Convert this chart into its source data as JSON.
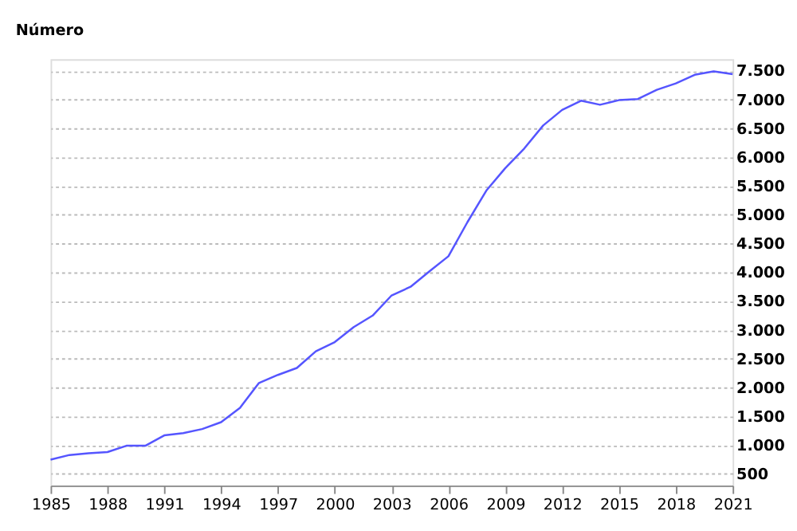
{
  "chart_data": {
    "type": "line",
    "ylabel": "Número",
    "x": [
      1985,
      1986,
      1987,
      1988,
      1989,
      1990,
      1991,
      1992,
      1993,
      1994,
      1995,
      1996,
      1997,
      1998,
      1999,
      2000,
      2001,
      2002,
      2003,
      2004,
      2005,
      2006,
      2007,
      2008,
      2009,
      2010,
      2011,
      2012,
      2013,
      2014,
      2015,
      2016,
      2017,
      2018,
      2019,
      2020,
      2021
    ],
    "series": [
      {
        "color": "#5555ff",
        "values": [
          750,
          830,
          860,
          880,
          990,
          990,
          1170,
          1210,
          1280,
          1400,
          1650,
          2080,
          2220,
          2340,
          2630,
          2790,
          3050,
          3250,
          3600,
          3750,
          4020,
          4280,
          4870,
          5420,
          5810,
          6150,
          6550,
          6820,
          6980,
          6910,
          6990,
          7010,
          7170,
          7280,
          7430,
          7490,
          7440
        ]
      }
    ],
    "xlim": [
      1985,
      2021
    ],
    "xticks": [
      1985,
      1988,
      1991,
      1994,
      1997,
      2000,
      2003,
      2006,
      2009,
      2012,
      2015,
      2018,
      2021
    ],
    "ylim": [
      300,
      7700
    ],
    "yticks": [
      {
        "value": 500,
        "label": "500"
      },
      {
        "value": 1000,
        "label": "1.000"
      },
      {
        "value": 1500,
        "label": "1.500"
      },
      {
        "value": 2000,
        "label": "2.000"
      },
      {
        "value": 2500,
        "label": "2.500"
      },
      {
        "value": 3000,
        "label": "3.000"
      },
      {
        "value": 3500,
        "label": "3.500"
      },
      {
        "value": 4000,
        "label": "4.000"
      },
      {
        "value": 4500,
        "label": "4.500"
      },
      {
        "value": 5000,
        "label": "5.000"
      },
      {
        "value": 5500,
        "label": "5.500"
      },
      {
        "value": 6000,
        "label": "6.000"
      },
      {
        "value": 6500,
        "label": "6.500"
      },
      {
        "value": 7000,
        "label": "7.000"
      },
      {
        "value": 7500,
        "label": "7.500"
      }
    ],
    "grid": "y",
    "marker": "none",
    "line_style": "solid"
  }
}
